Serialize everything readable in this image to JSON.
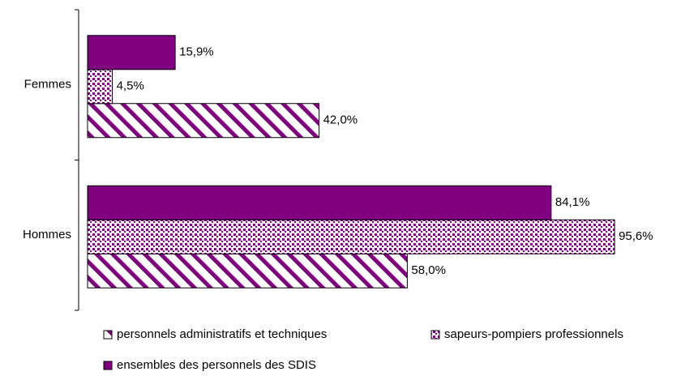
{
  "chart_data": {
    "type": "hbar",
    "categories": [
      "Femmes",
      "Hommes"
    ],
    "series": [
      {
        "name": "personnels administratifs et techniques",
        "color": "#800080",
        "fill_pattern": "diagonal",
        "values": [
          42.0,
          58.0
        ],
        "value_labels": [
          "42,0%",
          "58,0%"
        ]
      },
      {
        "name": "sapeurs-pompiers professionnels",
        "color": "#800080",
        "fill_pattern": "dots",
        "values": [
          4.5,
          95.6
        ],
        "value_labels": [
          "4,5%",
          "95,6%"
        ]
      },
      {
        "name": "ensembles des personnels des SDIS",
        "color": "#800080",
        "fill_pattern": "solid",
        "values": [
          15.9,
          84.1
        ],
        "value_labels": [
          "15,9%",
          "84,1%"
        ]
      }
    ],
    "xlim": [
      0,
      100
    ]
  }
}
